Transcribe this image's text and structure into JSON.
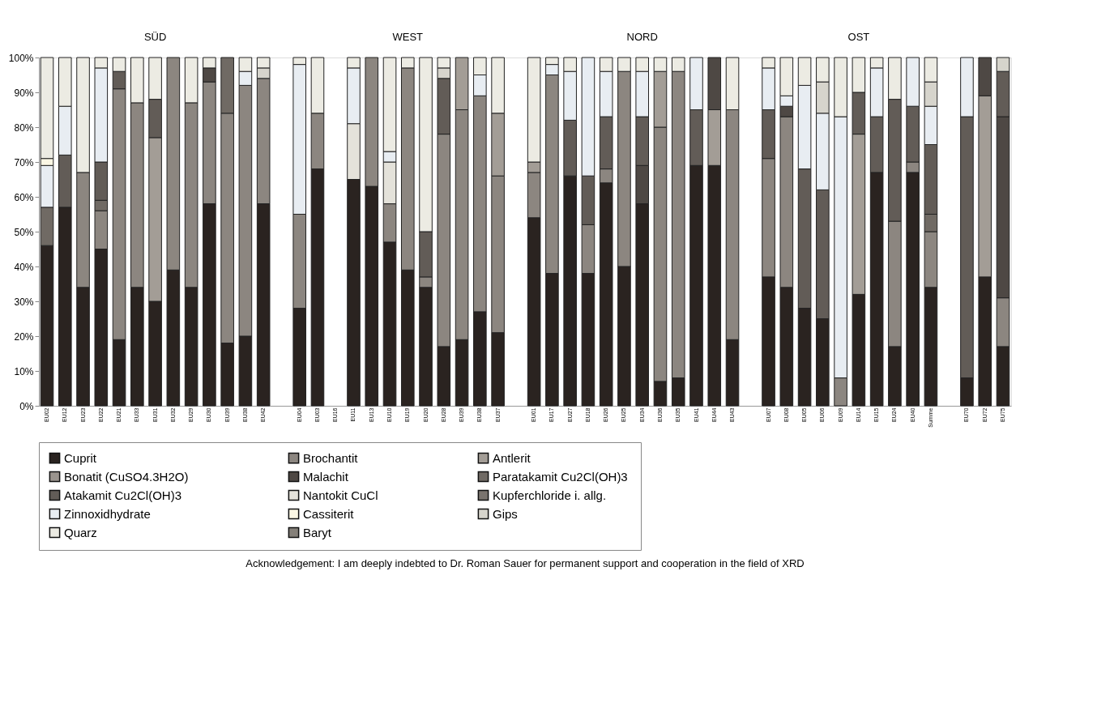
{
  "chart_data": {
    "type": "bar",
    "stacked": true,
    "legend": "bottom",
    "grid": false,
    "categories": [
      "EU02",
      "EU12",
      "EU23",
      "EU22",
      "EU21",
      "EU33",
      "EU31",
      "EU32",
      "EU29",
      "EU30",
      "EU39",
      "EU38",
      "EU42",
      null,
      "EU04",
      "EU03",
      "EU16",
      "EU11",
      "EU13",
      "EU10",
      "EU19",
      "EU20",
      "EU28",
      "EU39",
      "EU38",
      "EU37",
      null,
      "EU01",
      "EU17",
      "EU27",
      "EU18",
      "EU26",
      "EU25",
      "EU34",
      "EU36",
      "EU35",
      "EU41",
      "EU44",
      "EU43",
      null,
      "EU07",
      "EU08",
      "EU05",
      "EU06",
      "EU09",
      "EU14",
      "EU15",
      "EU24",
      "EU40",
      "Summe",
      null,
      "EU70",
      "EU72",
      "EU75"
    ],
    "ylim": [
      0,
      100
    ],
    "yticks": [
      {
        "value": 0,
        "label": "0%"
      },
      {
        "value": 10,
        "label": "10%"
      },
      {
        "value": 20,
        "label": "20%"
      },
      {
        "value": 30,
        "label": "30%"
      },
      {
        "value": 40,
        "label": "40%"
      },
      {
        "value": 50,
        "label": "50%"
      },
      {
        "value": 60,
        "label": "60%"
      },
      {
        "value": 70,
        "label": "70%"
      },
      {
        "value": 80,
        "label": "80%"
      },
      {
        "value": 90,
        "label": "90%"
      },
      {
        "value": 100,
        "label": "100%"
      }
    ],
    "series": [
      {
        "name": "Cuprit",
        "color": "#2a2320",
        "values": [
          46,
          57,
          34,
          45,
          19,
          34,
          30,
          39,
          34,
          58,
          18,
          20,
          58,
          null,
          28,
          68,
          null,
          65,
          63,
          47,
          39,
          34,
          17,
          19,
          27,
          21,
          null,
          54,
          38,
          66,
          38,
          64,
          40,
          58,
          7,
          8,
          69,
          69,
          19,
          null,
          37,
          34,
          28,
          25,
          null,
          32,
          67,
          17,
          67,
          34,
          null,
          8,
          37,
          17
        ]
      },
      {
        "name": "Brochantit",
        "color": "#8c8680",
        "values": [
          null,
          null,
          33,
          11,
          72,
          53,
          null,
          61,
          53,
          35,
          66,
          72,
          36,
          null,
          27,
          16,
          null,
          null,
          37,
          11,
          58,
          3,
          61,
          66,
          62,
          45,
          null,
          13,
          57,
          null,
          14,
          4,
          56,
          null,
          73,
          88,
          null,
          null,
          66,
          null,
          34,
          49,
          null,
          null,
          8,
          null,
          null,
          36,
          3,
          16,
          null,
          null,
          null,
          14
        ]
      },
      {
        "name": "Antlerit",
        "color": "#a39d96",
        "values": [
          null,
          null,
          null,
          null,
          null,
          null,
          47,
          null,
          null,
          null,
          null,
          null,
          null,
          null,
          null,
          null,
          null,
          null,
          null,
          null,
          null,
          null,
          null,
          15,
          null,
          18,
          null,
          3,
          null,
          null,
          null,
          null,
          null,
          null,
          16,
          null,
          null,
          16,
          null,
          null,
          null,
          null,
          null,
          null,
          null,
          46,
          null,
          null,
          null,
          null,
          null,
          null,
          52,
          null
        ]
      },
      {
        "name": "Bonatit (CuSO4.3H2O)",
        "color": "#9a948e",
        "values": [
          null,
          null,
          null,
          null,
          null,
          null,
          null,
          null,
          null,
          null,
          null,
          null,
          null,
          null,
          null,
          null,
          null,
          null,
          null,
          null,
          null,
          null,
          null,
          null,
          null,
          null,
          null,
          null,
          null,
          null,
          null,
          null,
          null,
          null,
          null,
          null,
          null,
          null,
          null,
          null,
          null,
          null,
          null,
          null,
          null,
          null,
          null,
          null,
          null,
          null,
          null,
          null,
          null,
          null
        ]
      },
      {
        "name": "Malachit",
        "color": "#4e4844",
        "values": [
          null,
          null,
          null,
          null,
          null,
          null,
          null,
          null,
          null,
          4,
          null,
          null,
          null,
          null,
          null,
          null,
          null,
          null,
          null,
          null,
          null,
          null,
          null,
          null,
          null,
          null,
          null,
          null,
          null,
          null,
          null,
          null,
          null,
          11,
          null,
          null,
          null,
          15,
          null,
          null,
          null,
          3,
          null,
          null,
          null,
          null,
          null,
          null,
          null,
          null,
          null,
          null,
          11,
          52
        ]
      },
      {
        "name": "Paratakamit  Cu2Cl(OH)3",
        "color": "#706a64",
        "values": [
          11,
          null,
          null,
          3,
          null,
          null,
          null,
          null,
          null,
          null,
          16,
          null,
          null,
          null,
          null,
          null,
          null,
          null,
          null,
          null,
          null,
          null,
          null,
          null,
          null,
          null,
          null,
          null,
          null,
          null,
          null,
          null,
          null,
          null,
          null,
          null,
          null,
          null,
          null,
          null,
          null,
          null,
          null,
          null,
          null,
          null,
          null,
          null,
          null,
          5,
          null,
          null,
          null,
          null
        ]
      },
      {
        "name": "Atakamit Cu2Cl(OH)3",
        "color": "#625c57",
        "values": [
          null,
          15,
          null,
          11,
          5,
          null,
          11,
          null,
          null,
          null,
          null,
          null,
          null,
          null,
          null,
          null,
          null,
          null,
          null,
          null,
          null,
          13,
          16,
          null,
          null,
          null,
          null,
          null,
          null,
          16,
          14,
          15,
          null,
          14,
          null,
          null,
          16,
          null,
          null,
          null,
          14,
          null,
          40,
          37,
          null,
          12,
          16,
          35,
          16,
          20,
          null,
          75,
          null,
          13
        ]
      },
      {
        "name": "Nantokit CuCl",
        "color": "#e4e2da",
        "values": [
          null,
          null,
          null,
          null,
          null,
          null,
          null,
          null,
          null,
          null,
          null,
          null,
          null,
          null,
          null,
          null,
          null,
          16,
          null,
          12,
          null,
          null,
          null,
          null,
          null,
          null,
          null,
          null,
          null,
          null,
          null,
          null,
          null,
          null,
          null,
          null,
          null,
          null,
          null,
          null,
          null,
          null,
          null,
          null,
          null,
          null,
          null,
          null,
          null,
          null,
          null,
          null,
          null,
          null
        ]
      },
      {
        "name": "Kupferchloride i. allg.",
        "color": "#7a746e",
        "values": [
          null,
          null,
          null,
          null,
          null,
          null,
          null,
          null,
          null,
          null,
          null,
          null,
          null,
          null,
          null,
          null,
          null,
          null,
          null,
          null,
          null,
          null,
          null,
          null,
          null,
          null,
          null,
          null,
          null,
          null,
          null,
          null,
          null,
          null,
          null,
          null,
          null,
          null,
          null,
          null,
          null,
          null,
          null,
          null,
          null,
          null,
          null,
          null,
          null,
          null,
          null,
          null,
          null,
          null
        ]
      },
      {
        "name": "Zinnoxidhydrate",
        "color": "#e8edf2",
        "values": [
          12,
          14,
          null,
          27,
          null,
          null,
          null,
          null,
          null,
          null,
          null,
          4,
          null,
          null,
          43,
          null,
          null,
          16,
          null,
          3,
          null,
          null,
          null,
          null,
          6,
          null,
          null,
          null,
          3,
          14,
          34,
          13,
          null,
          13,
          null,
          null,
          15,
          null,
          null,
          null,
          12,
          3,
          24,
          22,
          75,
          null,
          14,
          null,
          14,
          11,
          null,
          17,
          null,
          null
        ]
      },
      {
        "name": "Cassiterit",
        "color": "#fbf7e4",
        "values": [
          2,
          null,
          null,
          null,
          null,
          null,
          null,
          null,
          null,
          null,
          null,
          null,
          null,
          null,
          null,
          null,
          null,
          null,
          null,
          null,
          null,
          null,
          null,
          null,
          null,
          null,
          null,
          null,
          null,
          null,
          null,
          null,
          null,
          null,
          null,
          null,
          null,
          null,
          null,
          null,
          null,
          null,
          null,
          null,
          null,
          null,
          null,
          null,
          null,
          null,
          null,
          null,
          null,
          null
        ]
      },
      {
        "name": "Gips",
        "color": "#d6d4cc",
        "values": [
          null,
          null,
          null,
          null,
          null,
          null,
          null,
          null,
          null,
          null,
          null,
          null,
          3,
          null,
          null,
          null,
          null,
          null,
          null,
          null,
          null,
          null,
          3,
          null,
          null,
          null,
          null,
          null,
          null,
          null,
          null,
          null,
          null,
          null,
          null,
          null,
          null,
          null,
          null,
          null,
          null,
          null,
          null,
          9,
          null,
          null,
          null,
          null,
          null,
          7,
          null,
          null,
          null,
          4
        ]
      },
      {
        "name": "Quarz",
        "color": "#ecebe3",
        "values": [
          29,
          14,
          33,
          3,
          4,
          13,
          12,
          null,
          13,
          3,
          null,
          4,
          3,
          null,
          2,
          16,
          null,
          3,
          null,
          27,
          3,
          50,
          3,
          null,
          5,
          16,
          null,
          30,
          2,
          4,
          null,
          4,
          4,
          4,
          4,
          4,
          null,
          null,
          15,
          null,
          3,
          11,
          8,
          7,
          17,
          10,
          3,
          12,
          null,
          7,
          null,
          null,
          null,
          null
        ]
      },
      {
        "name": "Baryt",
        "color": "#858079",
        "values": [
          null,
          null,
          null,
          null,
          null,
          null,
          null,
          null,
          null,
          null,
          null,
          null,
          null,
          null,
          null,
          null,
          null,
          null,
          null,
          null,
          null,
          null,
          null,
          null,
          null,
          null,
          null,
          null,
          null,
          null,
          null,
          null,
          null,
          null,
          null,
          null,
          null,
          null,
          null,
          null,
          null,
          null,
          null,
          null,
          null,
          null,
          null,
          null,
          null,
          null,
          null,
          null,
          null,
          null
        ]
      }
    ],
    "annotations": [
      "SÜD",
      "WEST",
      "NORD",
      "OST",
      "Acknowledgement: I am deeply indebted to Dr. Roman Sauer for permanent support and cooperation in the field of XRD"
    ]
  }
}
